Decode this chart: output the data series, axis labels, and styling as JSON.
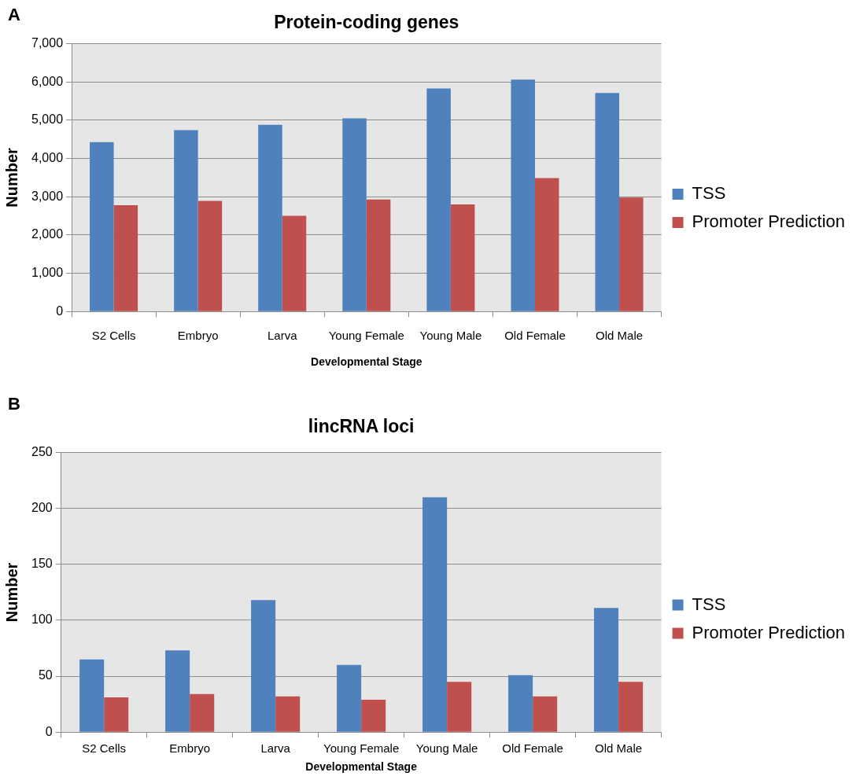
{
  "chart_data": [
    {
      "type": "bar",
      "title": "Protein-coding genes",
      "annotations": [
        "A"
      ],
      "xlabel": "Developmental Stage",
      "ylabel": "Number",
      "categories": [
        "S2 Cells",
        "Embryo",
        "Larva",
        "Young Female",
        "Young Male",
        "Old Female",
        "Old Male"
      ],
      "series": [
        {
          "name": "TSS",
          "color": "#4f81bd",
          "values": [
            4430,
            4740,
            4880,
            5050,
            5830,
            6060,
            5710
          ]
        },
        {
          "name": "Promoter Prediction",
          "color": "#c0504d",
          "values": [
            2780,
            2890,
            2500,
            2930,
            2800,
            3490,
            2980
          ]
        }
      ],
      "ylim": [
        0,
        7000
      ],
      "yticks": [
        0,
        {
          "value": 1000,
          "label": "1,000"
        },
        {
          "value": 2000,
          "label": "2,000"
        },
        {
          "value": 3000,
          "label": "3,000"
        },
        {
          "value": 4000,
          "label": "4,000"
        },
        {
          "value": 5000,
          "label": "5,000"
        },
        {
          "value": 6000,
          "label": "6,000"
        },
        {
          "value": 7000,
          "label": "7,000"
        }
      ],
      "grid": "y",
      "legend": "right"
    },
    {
      "type": "bar",
      "title": "lincRNA loci",
      "annotations": [
        "B"
      ],
      "xlabel": "Developmental Stage",
      "ylabel": "Number",
      "categories": [
        "S2 Cells",
        "Embryo",
        "Larva",
        "Young Female",
        "Young Male",
        "Old Female",
        "Old Male"
      ],
      "series": [
        {
          "name": "TSS",
          "color": "#4f81bd",
          "values": [
            65,
            73,
            118,
            60,
            210,
            51,
            111
          ]
        },
        {
          "name": "Promoter Prediction",
          "color": "#c0504d",
          "values": [
            31,
            34,
            32,
            29,
            45,
            32,
            45
          ]
        }
      ],
      "ylim": [
        0,
        250
      ],
      "yticks": [
        0,
        50,
        100,
        150,
        200,
        250
      ],
      "grid": "y",
      "legend": "right"
    }
  ]
}
